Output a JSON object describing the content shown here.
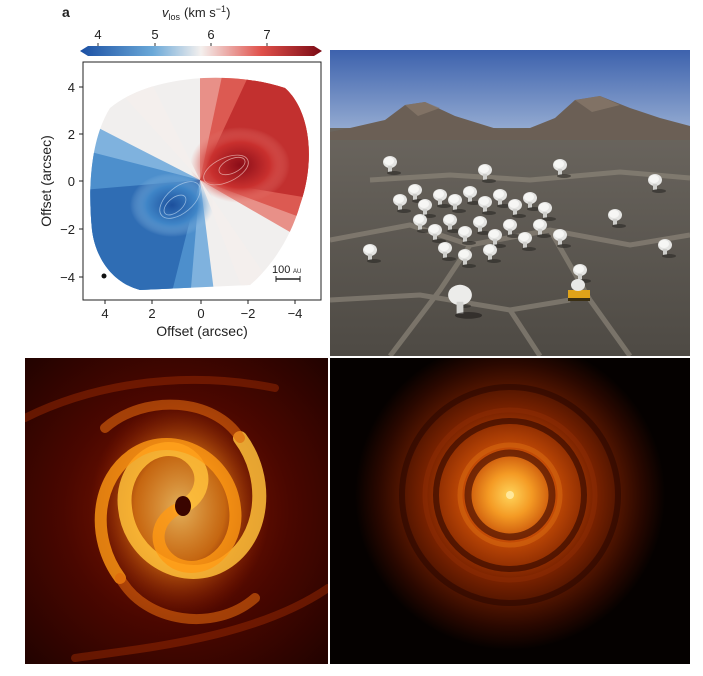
{
  "figure": {
    "panel_label": "a",
    "colorbar": {
      "label_prefix": "v",
      "label_subscript": "los",
      "label_unit": "(km s",
      "label_exp": "−1",
      "label_close": ")",
      "ticks": [
        "4",
        "5",
        "6",
        "7"
      ],
      "colors": [
        "#1b4fa3",
        "#6aa8d8",
        "#f4f0ee",
        "#e0504a",
        "#7a0a14"
      ]
    },
    "velocity_map": {
      "xlabel": "Offset (arcsec)",
      "ylabel": "Offset (arcsec)",
      "x_ticks": [
        "4",
        "2",
        "0",
        "−2",
        "−4"
      ],
      "y_ticks": [
        "4",
        "2",
        "0",
        "−2",
        "−4"
      ],
      "scalebar_value": "100",
      "scalebar_unit": "AU"
    },
    "photo_b": {
      "sky": "#4f74b5",
      "ground": "#5a5650"
    },
    "image_c": {
      "palette": [
        "#2a0400",
        "#a32200",
        "#ff9a14",
        "#ffe070"
      ]
    },
    "image_d": {
      "palette": [
        "#050100",
        "#5a1a00",
        "#c24a06",
        "#ffc340"
      ]
    }
  },
  "chart_data": {
    "type": "heatmap",
    "quantity": "line-of-sight velocity",
    "colorbar_range": [
      3.5,
      7.8
    ],
    "colorbar_ticks": [
      4,
      5,
      6,
      7
    ],
    "xlim": [
      5,
      -5
    ],
    "ylim": [
      -5,
      5
    ],
    "x_ticks": [
      4,
      2,
      0,
      -2,
      -4
    ],
    "y_ticks": [
      4,
      2,
      0,
      -2,
      -4
    ],
    "grid": false
  }
}
